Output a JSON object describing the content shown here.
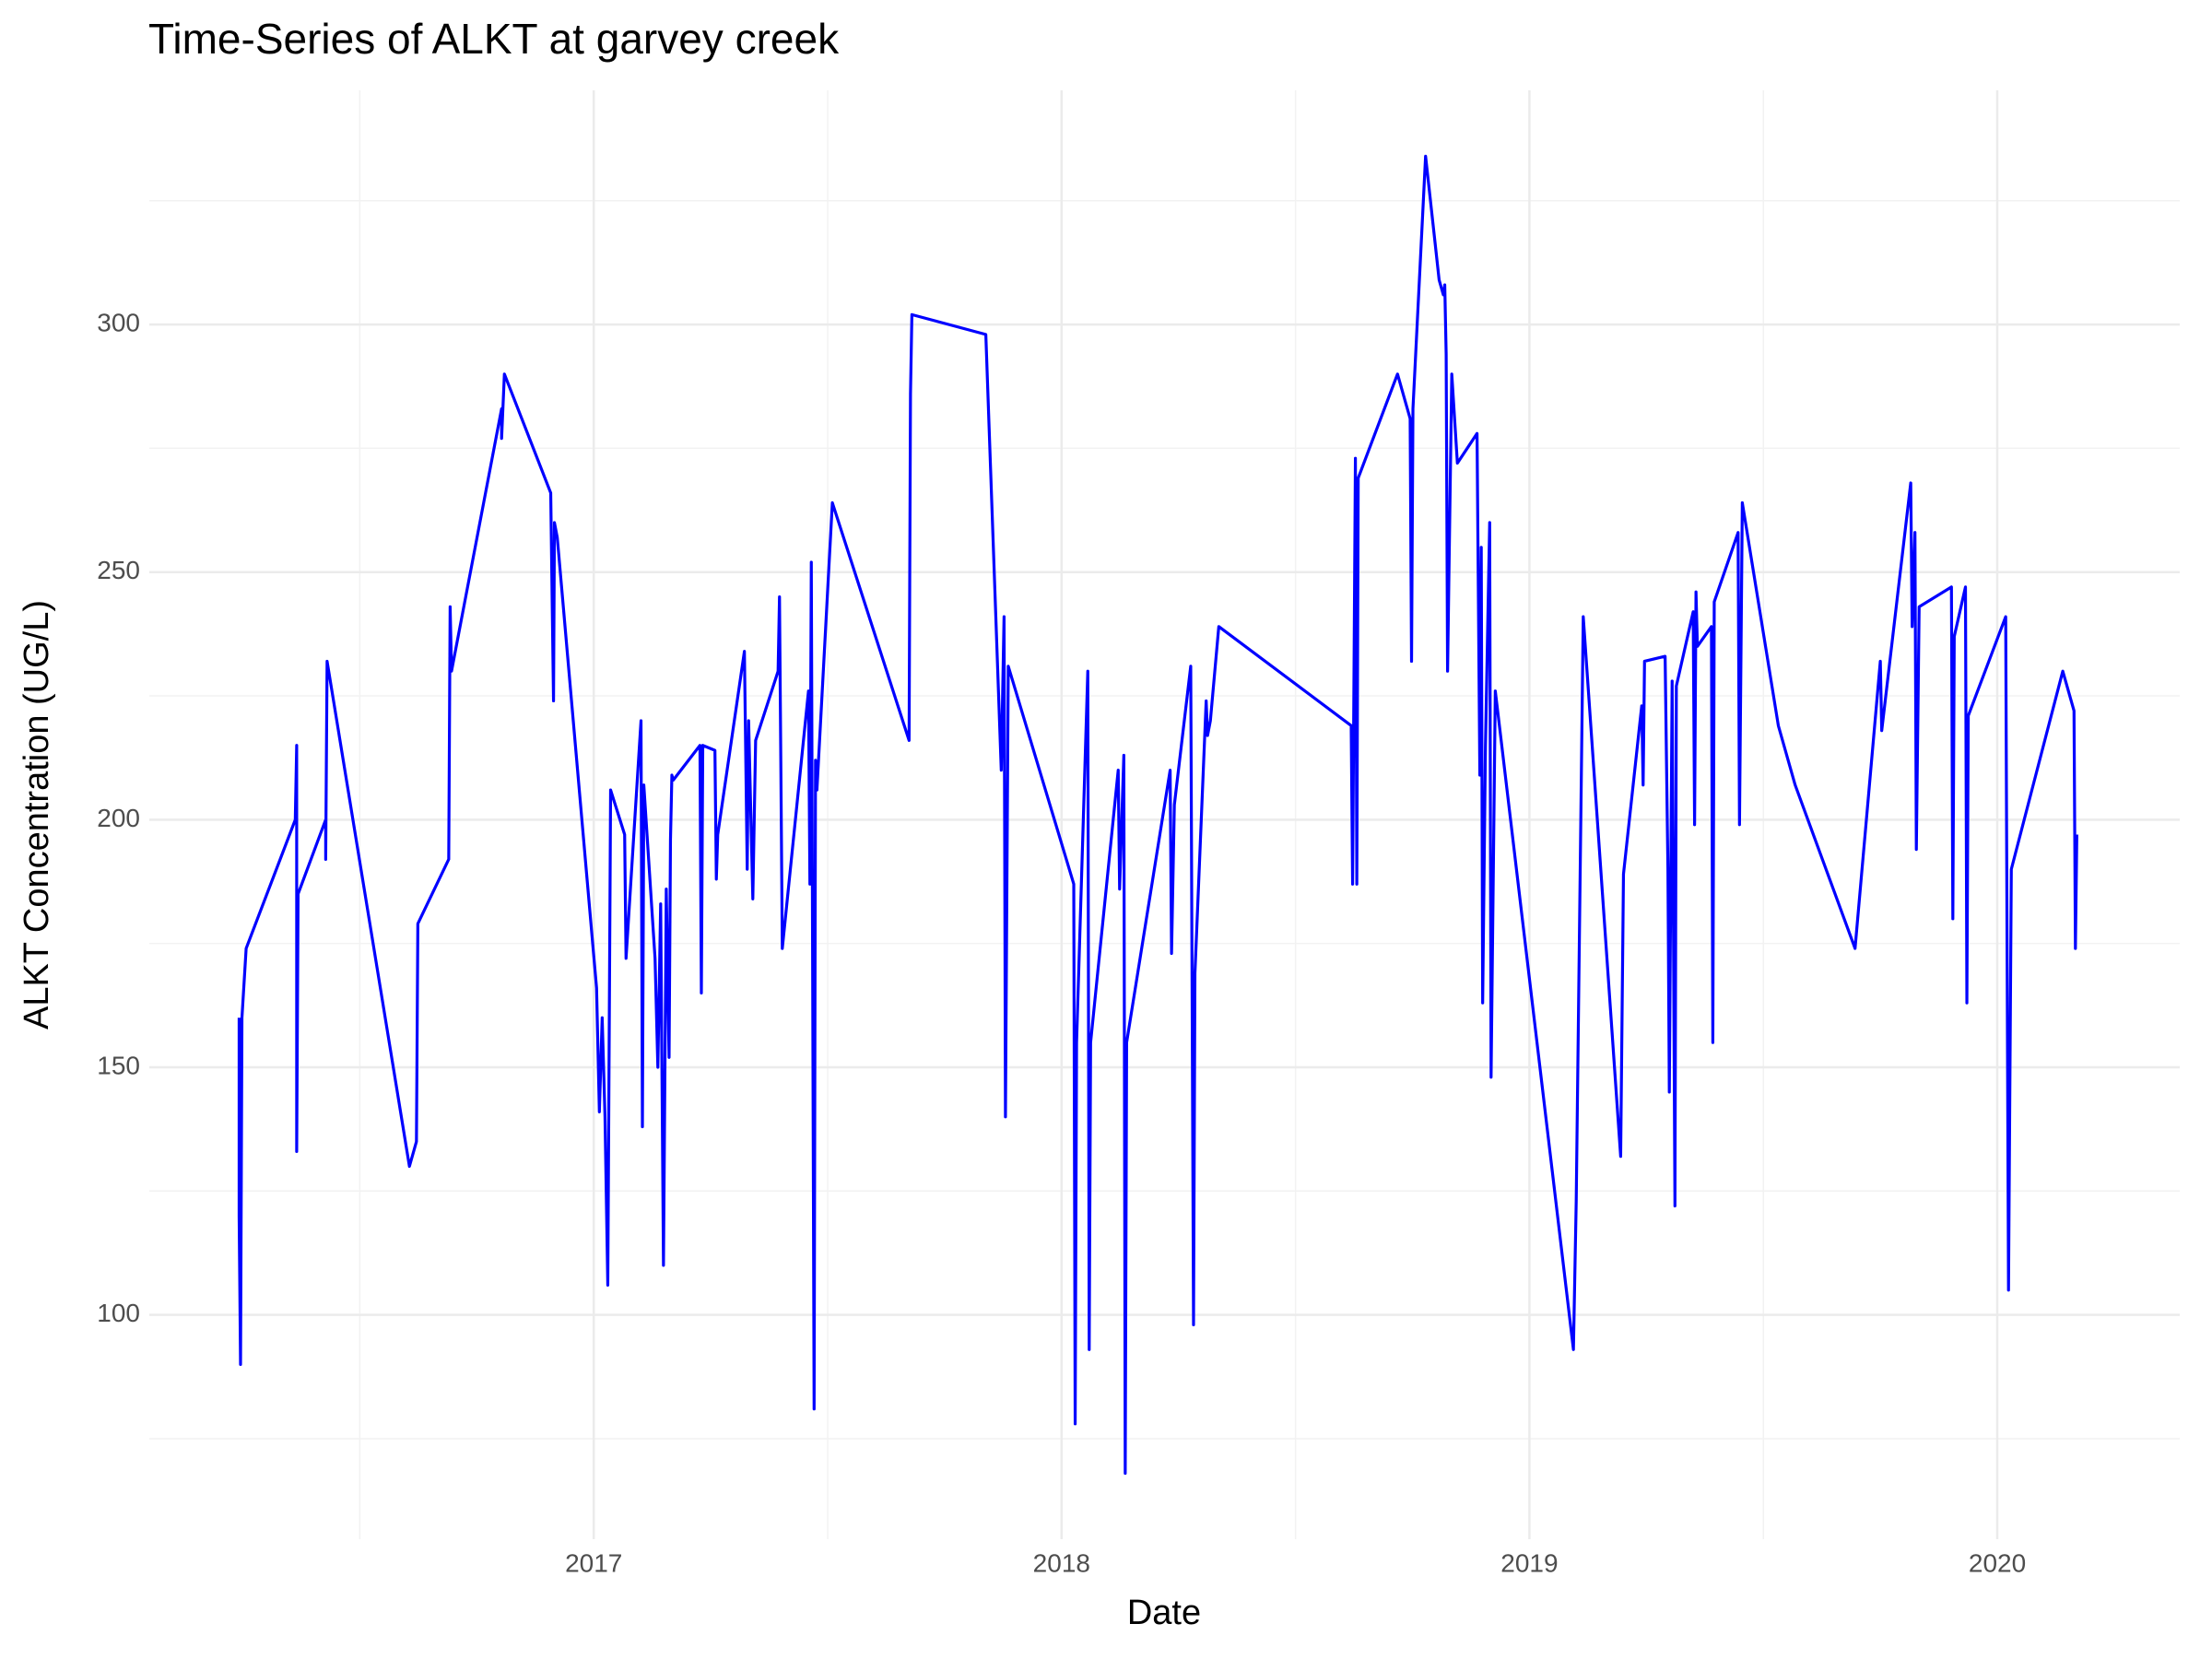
{
  "chart_data": {
    "type": "line",
    "title": "Time-Series of ALKT at garvey creek",
    "x_label": "Date",
    "y_label": "ALKT Concentration (UG/L)",
    "color": "#0000ff",
    "grid": true,
    "xlim": [
      2016.05,
      2020.39
    ],
    "ylim": [
      54.7,
      347.3
    ],
    "xticks": [
      2017,
      2018,
      2019,
      2020
    ],
    "yticks": [
      100,
      150,
      200,
      250,
      300
    ],
    "x_minor_ticks": [
      2016.5,
      2017.5,
      2018.5,
      2019.5
    ],
    "y_minor_ticks": [
      75,
      125,
      175,
      225,
      275,
      325
    ],
    "x": [
      2016.242,
      2016.242,
      2016.245,
      2016.248,
      2016.257,
      2016.362,
      2016.365,
      2016.365,
      2016.368,
      2016.427,
      2016.427,
      2016.43,
      2016.606,
      2016.621,
      2016.624,
      2016.69,
      2016.693,
      2016.696,
      2016.803,
      2016.803,
      2016.809,
      2016.908,
      2016.914,
      2016.916,
      2016.922,
      2017.006,
      2017.012,
      2017.018,
      2017.024,
      2017.03,
      2017.036,
      2017.066,
      2017.069,
      2017.101,
      2017.104,
      2017.107,
      2017.131,
      2017.137,
      2017.143,
      2017.149,
      2017.155,
      2017.161,
      2017.164,
      2017.167,
      2017.17,
      2017.227,
      2017.23,
      2017.233,
      2017.259,
      2017.262,
      2017.265,
      2017.322,
      2017.328,
      2017.331,
      2017.34,
      2017.346,
      2017.394,
      2017.397,
      2017.403,
      2017.459,
      2017.462,
      2017.465,
      2017.471,
      2017.474,
      2017.477,
      2017.51,
      2017.674,
      2017.677,
      2017.68,
      2017.838,
      2017.871,
      2017.877,
      2017.88,
      2017.886,
      2018.026,
      2018.029,
      2018.032,
      2018.056,
      2018.059,
      2018.062,
      2018.121,
      2018.124,
      2018.133,
      2018.136,
      2018.139,
      2018.232,
      2018.235,
      2018.241,
      2018.276,
      2018.282,
      2018.285,
      2018.309,
      2018.312,
      2018.318,
      2018.336,
      2018.619,
      2018.622,
      2018.628,
      2018.631,
      2018.634,
      2018.718,
      2018.745,
      2018.748,
      2018.751,
      2018.778,
      2018.807,
      2018.816,
      2018.819,
      2018.822,
      2018.825,
      2018.834,
      2018.846,
      2018.888,
      2018.894,
      2018.897,
      2018.9,
      2018.906,
      2018.915,
      2018.918,
      2018.927,
      2019.094,
      2019.1,
      2019.115,
      2019.195,
      2019.201,
      2019.24,
      2019.243,
      2019.246,
      2019.29,
      2019.296,
      2019.299,
      2019.305,
      2019.311,
      2019.314,
      2019.35,
      2019.353,
      2019.356,
      2019.359,
      2019.389,
      2019.392,
      2019.395,
      2019.446,
      2019.449,
      2019.455,
      2019.532,
      2019.568,
      2019.696,
      2019.75,
      2019.753,
      2019.815,
      2019.818,
      2019.824,
      2019.827,
      2019.833,
      2019.902,
      2019.905,
      2019.908,
      2019.932,
      2019.935,
      2019.938,
      2020.018,
      2020.024,
      2020.03,
      2020.14,
      2020.164,
      2020.167,
      2020.17
    ],
    "values": [
      160,
      120,
      90,
      160,
      174,
      200,
      215,
      133,
      185,
      200,
      192,
      232,
      130,
      135,
      179,
      192,
      243,
      230,
      283,
      277,
      290,
      266,
      224,
      260,
      257,
      166,
      141,
      160,
      140,
      106,
      206,
      197,
      172,
      220,
      138,
      207,
      172,
      150,
      183,
      110,
      186,
      152,
      196,
      209,
      208,
      215,
      165,
      215,
      214,
      188,
      197,
      234,
      190,
      220,
      184,
      216,
      230,
      245,
      174,
      226,
      187,
      252,
      81,
      212,
      206,
      264,
      216,
      286,
      302,
      298,
      210,
      241,
      140,
      231,
      187,
      78,
      155,
      230,
      93,
      155,
      210,
      186,
      213,
      68,
      155,
      210,
      173,
      203,
      231,
      98,
      169,
      224,
      217,
      220,
      239,
      219,
      187,
      273,
      187,
      269,
      290,
      281,
      232,
      283,
      334,
      309,
      306,
      308,
      294,
      230,
      290,
      272,
      278,
      209,
      255,
      163,
      215,
      260,
      148,
      226,
      93,
      123,
      241,
      132,
      189,
      223,
      207,
      232,
      233,
      190,
      145,
      228,
      122,
      227,
      242,
      199,
      246,
      235,
      239,
      155,
      244,
      258,
      199,
      264,
      219,
      207,
      174,
      232,
      218,
      268,
      239,
      258,
      194,
      243,
      247,
      180,
      237,
      247,
      163,
      221,
      241,
      105,
      190,
      230,
      222,
      174,
      197
    ]
  }
}
